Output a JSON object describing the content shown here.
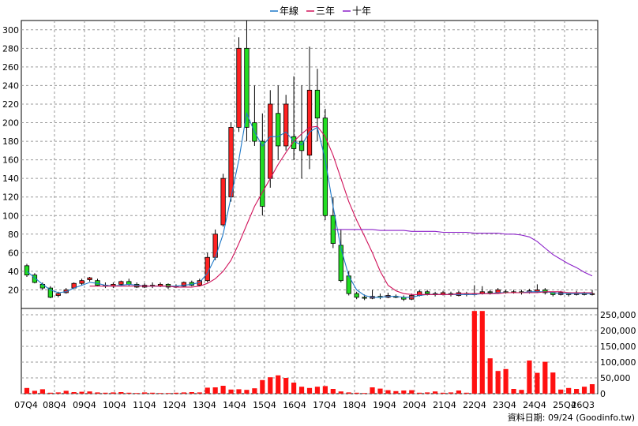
{
  "chart_data": {
    "type": "candlestick",
    "legend": [
      {
        "name": "年線",
        "color": "#1e78c8"
      },
      {
        "name": "三年",
        "color": "#d0125a"
      },
      {
        "name": "十年",
        "color": "#8a1fc8"
      }
    ],
    "legend_position": "top-center",
    "grid": true,
    "price_axis": {
      "ticks": [
        20,
        40,
        60,
        80,
        100,
        120,
        140,
        160,
        180,
        200,
        220,
        240,
        260,
        280,
        300
      ],
      "range": [
        0,
        310
      ]
    },
    "volume_axis": {
      "ticks": [
        "0",
        "50,000",
        "100,000",
        "150,000",
        "200,000",
        "250,000"
      ],
      "range": [
        0,
        270000
      ]
    },
    "x_labels": [
      "07Q4",
      "08Q4",
      "09Q4",
      "10Q4",
      "11Q4",
      "12Q4",
      "13Q4",
      "14Q4",
      "15Q4",
      "16Q4",
      "17Q4",
      "18Q4",
      "19Q4",
      "20Q4",
      "21Q4",
      "22Q4",
      "23Q4",
      "24Q4",
      "25Q4",
      "26Q3"
    ],
    "candles": [
      [
        46,
        36,
        48,
        34
      ],
      [
        36,
        28,
        38,
        27
      ],
      [
        26,
        22,
        28,
        20
      ],
      [
        22,
        12,
        24,
        11
      ],
      [
        14,
        16,
        18,
        12
      ],
      [
        17,
        20,
        22,
        16
      ],
      [
        22,
        27,
        28,
        21
      ],
      [
        27,
        30,
        32,
        25
      ],
      [
        31,
        33,
        34,
        29
      ],
      [
        30,
        25,
        32,
        24
      ],
      [
        25,
        24,
        28,
        22
      ],
      [
        24,
        26,
        28,
        22
      ],
      [
        26,
        29,
        30,
        24
      ],
      [
        29,
        26,
        32,
        24
      ],
      [
        26,
        23,
        28,
        22
      ],
      [
        23,
        25,
        27,
        22
      ],
      [
        25,
        24,
        28,
        22
      ],
      [
        24,
        26,
        28,
        23
      ],
      [
        26,
        23,
        27,
        21
      ],
      [
        23,
        24,
        26,
        22
      ],
      [
        24,
        28,
        29,
        23
      ],
      [
        28,
        25,
        30,
        24
      ],
      [
        25,
        30,
        32,
        24
      ],
      [
        30,
        55,
        60,
        28
      ],
      [
        55,
        80,
        85,
        52
      ],
      [
        90,
        140,
        145,
        88
      ],
      [
        120,
        195,
        200,
        115
      ],
      [
        195,
        280,
        292,
        190
      ],
      [
        280,
        195,
        310,
        180
      ],
      [
        200,
        180,
        240,
        175
      ],
      [
        180,
        110,
        210,
        100
      ],
      [
        140,
        220,
        235,
        130
      ],
      [
        210,
        175,
        240,
        160
      ],
      [
        175,
        220,
        230,
        170
      ],
      [
        185,
        172,
        250,
        160
      ],
      [
        180,
        170,
        240,
        140
      ],
      [
        165,
        235,
        282,
        150
      ],
      [
        235,
        205,
        258,
        180
      ],
      [
        205,
        100,
        215,
        95
      ],
      [
        100,
        70,
        120,
        65
      ],
      [
        68,
        30,
        85,
        28
      ],
      [
        35,
        16,
        40,
        14
      ],
      [
        16,
        12,
        18,
        10
      ],
      [
        12,
        11,
        15,
        9
      ],
      [
        11,
        13,
        20,
        10
      ],
      [
        13,
        12,
        16,
        10
      ],
      [
        12,
        14,
        17,
        11
      ],
      [
        13,
        12,
        15,
        11
      ],
      [
        12,
        10,
        14,
        8
      ],
      [
        10,
        14,
        16,
        9
      ],
      [
        14,
        18,
        20,
        13
      ],
      [
        18,
        16,
        20,
        14
      ],
      [
        16,
        15,
        18,
        13
      ],
      [
        15,
        17,
        19,
        14
      ],
      [
        16,
        15,
        18,
        13
      ],
      [
        14,
        17,
        19,
        13
      ],
      [
        16,
        15,
        18,
        13
      ],
      [
        15,
        16,
        25,
        14
      ],
      [
        16,
        18,
        24,
        15
      ],
      [
        18,
        17,
        20,
        15
      ],
      [
        17,
        20,
        22,
        16
      ],
      [
        18,
        17,
        20,
        16
      ],
      [
        17,
        18,
        20,
        16
      ],
      [
        18,
        17,
        20,
        15
      ],
      [
        17,
        19,
        21,
        16
      ],
      [
        18,
        20,
        26,
        17
      ],
      [
        20,
        17,
        22,
        15
      ],
      [
        17,
        15,
        18,
        13
      ],
      [
        15,
        17,
        19,
        14
      ],
      [
        16,
        15,
        17,
        13
      ],
      [
        15,
        16,
        19,
        14
      ],
      [
        16,
        15,
        18,
        14
      ],
      [
        15,
        16,
        20,
        14
      ]
    ],
    "ma_year": [
      40,
      33,
      26,
      20,
      17,
      18,
      22,
      25,
      28,
      27,
      25,
      24,
      25,
      26,
      25,
      24,
      24,
      24,
      24,
      24,
      25,
      26,
      28,
      38,
      55,
      80,
      120,
      160,
      210,
      190,
      175,
      185,
      185,
      190,
      180,
      176,
      190,
      195,
      160,
      110,
      65,
      35,
      20,
      14,
      12,
      12,
      13,
      13,
      12,
      12,
      14,
      15,
      15,
      15,
      15,
      15,
      15,
      15,
      16,
      16,
      17,
      17,
      17,
      17,
      18,
      18,
      18,
      17,
      16,
      16,
      16,
      16,
      16
    ],
    "ma_3y": [
      null,
      null,
      null,
      null,
      null,
      null,
      null,
      null,
      24,
      24,
      24,
      24,
      24,
      24,
      24,
      24,
      24,
      24,
      24,
      23,
      23,
      23,
      24,
      27,
      32,
      40,
      52,
      70,
      90,
      110,
      125,
      140,
      155,
      168,
      180,
      188,
      195,
      196,
      185,
      165,
      140,
      115,
      95,
      78,
      60,
      40,
      25,
      19,
      16,
      15,
      15,
      15,
      15,
      15,
      15,
      16,
      16,
      16,
      16,
      16,
      16,
      17,
      17,
      17,
      17,
      17,
      18,
      18,
      18,
      17,
      17,
      17,
      17
    ],
    "ma_10y": [
      null,
      null,
      null,
      null,
      null,
      null,
      null,
      null,
      null,
      null,
      null,
      null,
      null,
      null,
      null,
      null,
      null,
      null,
      null,
      null,
      null,
      null,
      null,
      null,
      null,
      null,
      null,
      null,
      null,
      null,
      null,
      null,
      null,
      null,
      null,
      null,
      null,
      null,
      null,
      85,
      85,
      85,
      85,
      85,
      85,
      84,
      84,
      84,
      84,
      83,
      83,
      83,
      83,
      82,
      82,
      82,
      82,
      81,
      81,
      81,
      81,
      80,
      80,
      79,
      77,
      72,
      65,
      58,
      53,
      48,
      44,
      39,
      35
    ],
    "volume": [
      18000,
      9000,
      14000,
      3000,
      4000,
      9000,
      5000,
      6000,
      7000,
      4000,
      3000,
      4000,
      5000,
      3000,
      2000,
      4000,
      3000,
      2000,
      2000,
      3000,
      4000,
      5000,
      4000,
      19000,
      20000,
      25000,
      13000,
      14000,
      12000,
      17000,
      43000,
      52000,
      58000,
      50000,
      35000,
      22000,
      18000,
      22000,
      24000,
      15000,
      7000,
      4000,
      3000,
      2000,
      20000,
      16000,
      11000,
      8000,
      10000,
      11000,
      3000,
      4000,
      7000,
      3000,
      4000,
      10000,
      3000,
      262000,
      262000,
      112000,
      72000,
      78000,
      15000,
      12000,
      105000,
      66000,
      101000,
      67000,
      13000,
      18000,
      15000,
      22000,
      30000
    ],
    "footer": "資料日期: 09/24  (Goodinfo.tw)"
  }
}
